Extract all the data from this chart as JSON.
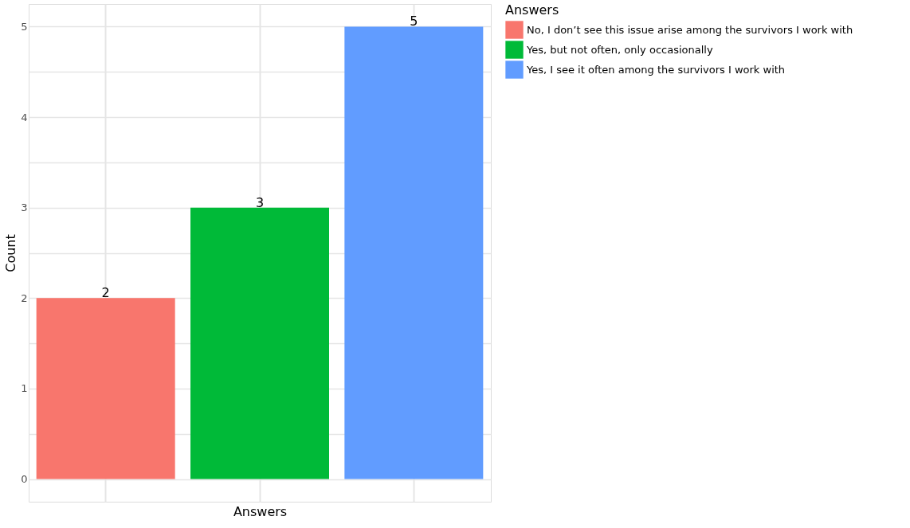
{
  "chart_data": {
    "type": "bar",
    "xlabel": "Answers",
    "ylabel": "Count",
    "legend_title": "Answers",
    "categories": [
      null,
      null,
      null
    ],
    "series": [
      {
        "name": "No, I don’t see this issue arise among the survivors I work with",
        "color": "#f8766d",
        "values": [
          2,
          null,
          null
        ]
      },
      {
        "name": "Yes, but not often, only occasionally",
        "color": "#00ba38",
        "values": [
          null,
          3,
          null
        ]
      },
      {
        "name": "Yes, I see it often among the survivors I work with",
        "color": "#619cff",
        "values": [
          null,
          null,
          5
        ]
      }
    ],
    "ylim": [
      -0.25,
      5.25
    ],
    "yticks": [
      0,
      {
        "value": 0.5,
        "label": null
      },
      1,
      {
        "value": 1.5,
        "label": null
      },
      2,
      {
        "value": 2.5,
        "label": null
      },
      3,
      {
        "value": 3.5,
        "label": null
      },
      4,
      {
        "value": 4.5,
        "label": null
      },
      5
    ],
    "data_labels": true,
    "grid": true,
    "legend": "right",
    "tick_labels": "y"
  }
}
